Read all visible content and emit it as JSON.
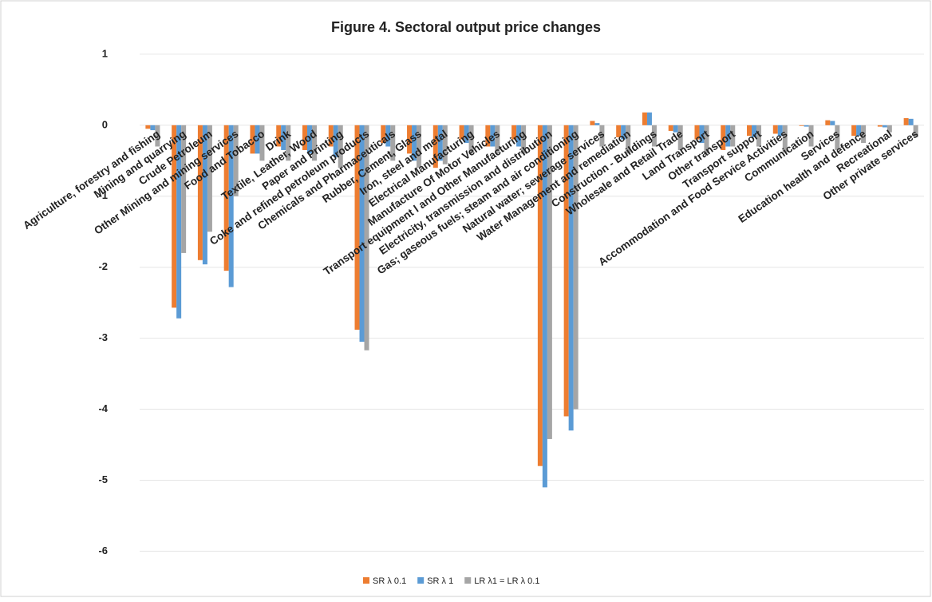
{
  "chart_data": {
    "type": "bar",
    "title": "Figure 4. Sectoral output price changes",
    "categories": [
      "Agriculture, forestry and fishing",
      "Mining and quarrying",
      "Crude Petroleum",
      "Other Mining and mining services",
      "Food and Tobacco",
      "Drink",
      "Textile, Leather, Wood",
      "Paper and Printing",
      "Coke and refined petroleum products",
      "Chemicals and Pharmaceuticals",
      "Rubber, Cement, Glass",
      "Iron, steel and metal",
      "Electrical Manufacturing",
      "Manufacture Of Motor Vehicles",
      "Transport equipment l and Other Manufacturing",
      "Electricity, transmission and distribution",
      "Gas; gaseous fuels; steam and air conditioning",
      "Natural water; sewerage services",
      "Water Management and remediation",
      "Construction - Buildings",
      "Wholesale and Retail Trade",
      "Land Transport",
      "Other transport",
      "Transport support",
      "Accommodation and Food Service Activities",
      "Communication",
      "Services",
      "Education health and defence",
      "Recreational",
      "Other private services"
    ],
    "series": [
      {
        "name": "SR λ 0.1",
        "color": "#ed7d31",
        "values": [
          -0.05,
          -2.57,
          -1.9,
          -2.05,
          -0.4,
          -0.3,
          -0.35,
          -0.3,
          -2.88,
          -0.25,
          -0.4,
          -0.6,
          -0.2,
          -0.3,
          -0.2,
          -4.8,
          -4.1,
          0.06,
          -0.17,
          0.18,
          -0.08,
          -0.2,
          -0.35,
          -0.15,
          -0.12,
          -0.01,
          0.07,
          -0.15,
          -0.02,
          0.1
        ]
      },
      {
        "name": "SR λ 1",
        "color": "#5b9bd5",
        "values": [
          -0.07,
          -2.72,
          -1.96,
          -2.28,
          -0.4,
          -0.35,
          -0.4,
          -0.45,
          -3.05,
          -0.3,
          -0.5,
          -0.5,
          -0.25,
          -0.3,
          -0.3,
          -5.1,
          -4.3,
          0.03,
          -0.2,
          0.18,
          -0.1,
          -0.25,
          -0.3,
          -0.17,
          -0.15,
          -0.02,
          0.06,
          -0.15,
          -0.03,
          0.09
        ]
      },
      {
        "name": "LR λ1 = LR λ 0.1",
        "color": "#a5a5a5",
        "values": [
          -0.3,
          -1.8,
          -1.5,
          -1.0,
          -0.5,
          -0.5,
          -0.5,
          -0.6,
          -3.17,
          -0.5,
          -0.6,
          -0.55,
          -0.4,
          -0.4,
          -0.4,
          -4.42,
          -4.0,
          -0.3,
          -0.4,
          -0.3,
          -0.35,
          -0.4,
          -0.3,
          -0.3,
          -0.38,
          -0.3,
          -0.35,
          -0.25,
          -0.1,
          -0.17
        ]
      }
    ],
    "ylim": [
      -6.4,
      1.1
    ],
    "yticks": [
      1,
      0,
      -1,
      -2,
      -3,
      -4,
      -5,
      -6
    ],
    "grid": true
  }
}
